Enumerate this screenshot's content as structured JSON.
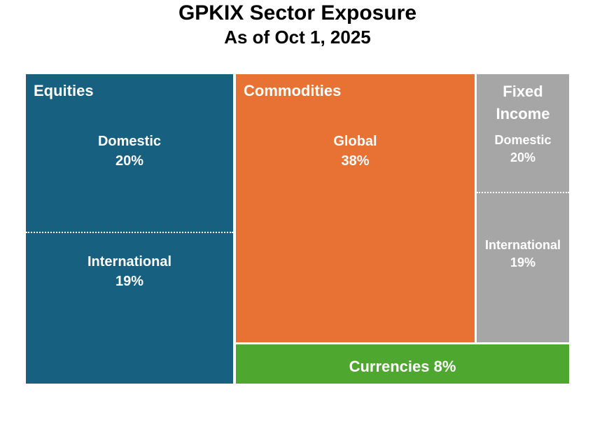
{
  "chart_data": {
    "type": "treemap",
    "title": "GPKIX Sector Exposure",
    "subtitle": "As of Oct 1, 2025",
    "groups": [
      {
        "name": "Equities",
        "color": "#17607f",
        "children": [
          {
            "name": "Domestic",
            "value": 20,
            "label": "20%"
          },
          {
            "name": "International",
            "value": 19,
            "label": "19%"
          }
        ]
      },
      {
        "name": "Commodities",
        "color": "#e87233",
        "children": [
          {
            "name": "Global",
            "value": 38,
            "label": "38%"
          }
        ]
      },
      {
        "name": "Fixed Income",
        "color": "#a6a6a6",
        "children": [
          {
            "name": "Domestic",
            "value": 20,
            "label": "20%"
          },
          {
            "name": "International",
            "value": 19,
            "label": "19%"
          }
        ]
      },
      {
        "name": "Currencies",
        "color": "#4ea72e",
        "value": 8,
        "label": "Currencies 8%"
      }
    ]
  }
}
